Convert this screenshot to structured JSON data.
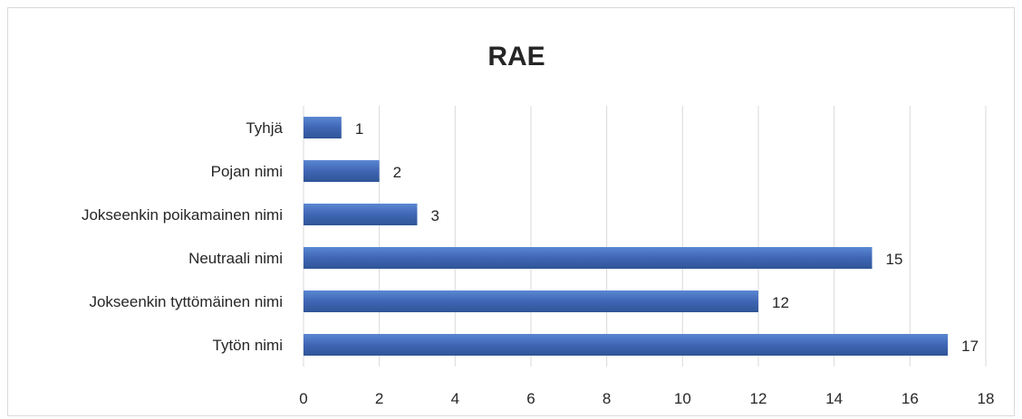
{
  "chart_data": {
    "type": "bar",
    "orientation": "horizontal",
    "title": "RAE",
    "xlabel": "",
    "ylabel": "",
    "categories": [
      "Tyhjä",
      "Pojan nimi",
      "Jokseenkin poikamainen nimi",
      "Neutraali nimi",
      "Jokseenkin tyttömäinen nimi",
      "Tytön nimi"
    ],
    "values": [
      1,
      2,
      3,
      15,
      12,
      17
    ],
    "xlim": [
      0,
      18
    ],
    "xticks": [
      0,
      2,
      4,
      6,
      8,
      10,
      12,
      14,
      16,
      18
    ],
    "grid": "vertical",
    "legend": "none",
    "bar_color": "#4472c4",
    "data_labels": true
  }
}
